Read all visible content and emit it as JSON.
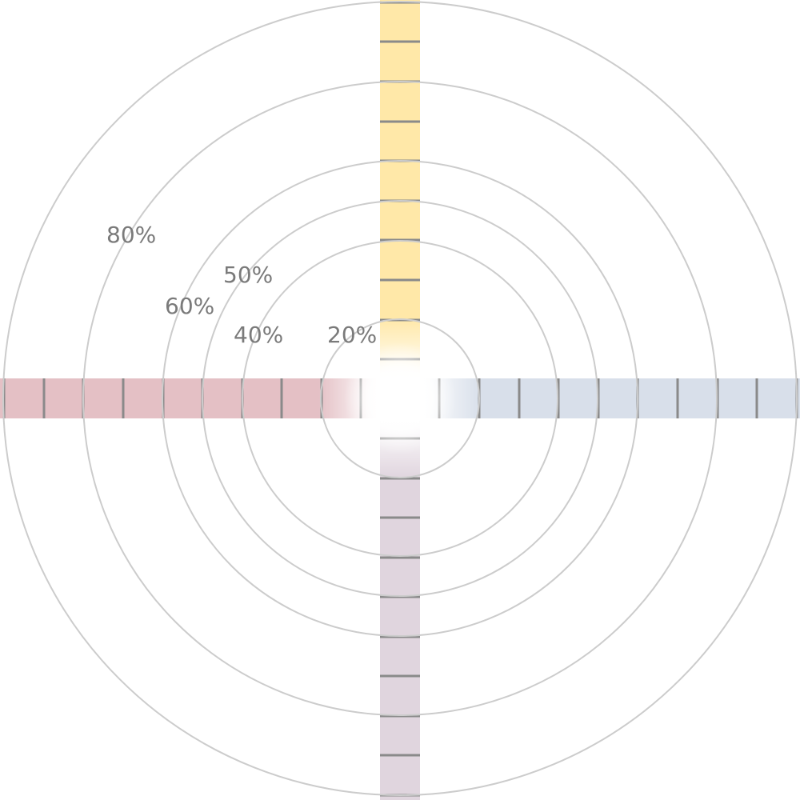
{
  "colors": {
    "background": "#ffffff",
    "ring": "#cccccc",
    "label": "#7a7a7a",
    "tick": "#8a8a8a",
    "arm_top": "#ffe8a8",
    "arm_right": "#d8dfea",
    "arm_bottom": "#e0d5de",
    "arm_left": "#e4c0c5",
    "center_glow": "#ffffff"
  },
  "rings": {
    "labels": [
      "20%",
      "40%",
      "50%",
      "60%",
      "80%"
    ]
  },
  "arms": [
    {
      "name": "top",
      "color_key": "arm_top"
    },
    {
      "name": "right",
      "color_key": "arm_right"
    },
    {
      "name": "bottom",
      "color_key": "arm_bottom"
    },
    {
      "name": "left",
      "color_key": "arm_left"
    }
  ],
  "icons": {
    "center": "radial-glow"
  }
}
